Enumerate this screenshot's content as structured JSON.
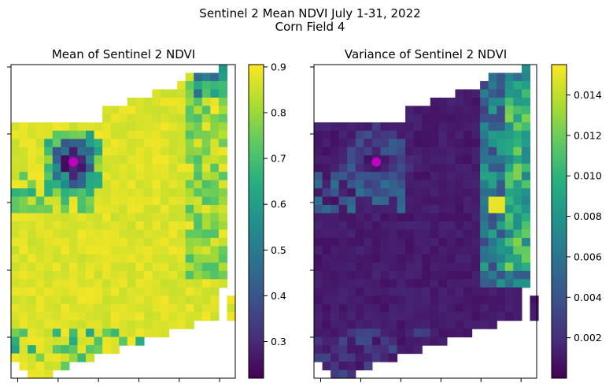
{
  "figure": {
    "title_line1": "Sentinel 2 Mean NDVI July 1-31, 2022",
    "title_line2": "Corn Field 4"
  },
  "chart_data": [
    {
      "type": "heatmap",
      "title": "Mean of Sentinel 2 NDVI",
      "colormap": "viridis",
      "colorbar": {
        "range": [
          0.22,
          0.905
        ],
        "ticks": [
          0.3,
          0.4,
          0.5,
          0.6,
          0.7,
          0.8,
          0.9
        ],
        "tick_labels": [
          "0.3",
          "0.4",
          "0.5",
          "0.6",
          "0.7",
          "0.8",
          "0.9"
        ]
      },
      "axis_tick_labels_shown": false,
      "marker": {
        "label": "",
        "color": "#c000c0"
      },
      "field_values": {
        "main_field": 0.87,
        "low_ring_center": 0.24,
        "low_ring_edge": 0.5,
        "east_edge_mix": 0.78,
        "top_right_patch": 0.45,
        "south_patches": 0.6
      }
    },
    {
      "type": "heatmap",
      "title": "Variance of Sentinel 2 NDVI",
      "colormap": "viridis",
      "colorbar": {
        "range": [
          0.0,
          0.0155
        ],
        "ticks": [
          0.002,
          0.004,
          0.006,
          0.008,
          0.01,
          0.012,
          0.014
        ],
        "tick_labels": [
          "0.002",
          "0.004",
          "0.006",
          "0.008",
          "0.010",
          "0.012",
          "0.014"
        ]
      },
      "axis_tick_labels_shown": false,
      "marker": {
        "label": "",
        "color": "#c000c0"
      },
      "field_values": {
        "main_field": 0.0007,
        "ring_variance": 0.0035,
        "east_edge_high": 0.012,
        "hotspot_max": 0.015,
        "south_patches": 0.003
      }
    }
  ]
}
